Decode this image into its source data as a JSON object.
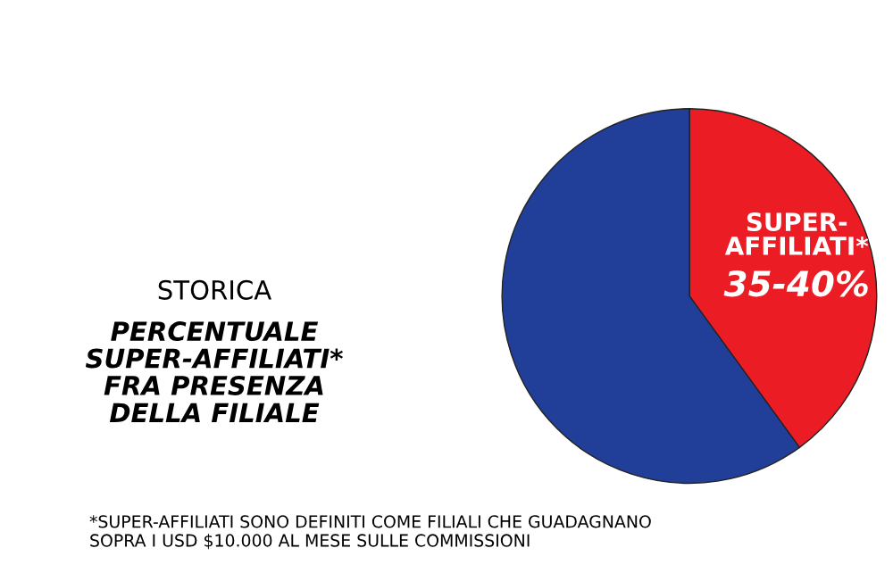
{
  "chart_data": {
    "type": "pie",
    "title": "STORICA",
    "subtitle": "PERCENTUALE\nSUPER-AFFILIATI*\nFRA PRESENZA\nDELLA FILIALE",
    "categories": [
      "SUPER-AFFILIATI*",
      null
    ],
    "values": [
      40,
      60
    ],
    "colors": [
      "#ec1c24",
      "#213f99"
    ],
    "annotations": [
      "35-40%",
      "*SUPER-AFFILIATI SONO DEFINITI COME FILIALI CHE GUADAGNANO\nSOPRA I USD $10.000 AL MESE SULLE COMMISSIONI"
    ]
  }
}
